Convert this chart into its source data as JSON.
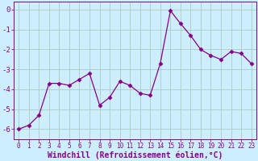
{
  "x": [
    0,
    1,
    2,
    3,
    4,
    5,
    6,
    7,
    8,
    9,
    10,
    11,
    12,
    13,
    14,
    15,
    16,
    17,
    18,
    19,
    20,
    21,
    22,
    23
  ],
  "y": [
    -6.0,
    -5.8,
    -5.3,
    -3.7,
    -3.7,
    -3.8,
    -3.5,
    -3.2,
    -4.8,
    -4.4,
    -3.6,
    -3.8,
    -4.2,
    -4.3,
    -2.7,
    -0.05,
    -0.7,
    -1.3,
    -2.0,
    -2.3,
    -2.5,
    -2.1,
    -2.2,
    -2.7
  ],
  "line_color": "#880088",
  "marker": "D",
  "marker_size": 2.5,
  "bg_color": "#cceeff",
  "grid_color": "#aaccbb",
  "xlabel": "Windchill (Refroidissement éolien,°C)",
  "ylim": [
    -6.5,
    0.4
  ],
  "xlim": [
    -0.5,
    23.5
  ],
  "yticks": [
    0,
    -1,
    -2,
    -3,
    -4,
    -5,
    -6
  ],
  "ytick_labels": [
    "0",
    "-1",
    "-2",
    "-3",
    "-4",
    "-5",
    "-6"
  ],
  "xticks": [
    0,
    1,
    2,
    3,
    4,
    5,
    6,
    7,
    8,
    9,
    10,
    11,
    12,
    13,
    14,
    15,
    16,
    17,
    18,
    19,
    20,
    21,
    22,
    23
  ],
  "tick_color": "#880088",
  "tick_label_size": 5.5,
  "ytick_label_size": 6.5,
  "xlabel_size": 7.0,
  "line_width": 0.9
}
